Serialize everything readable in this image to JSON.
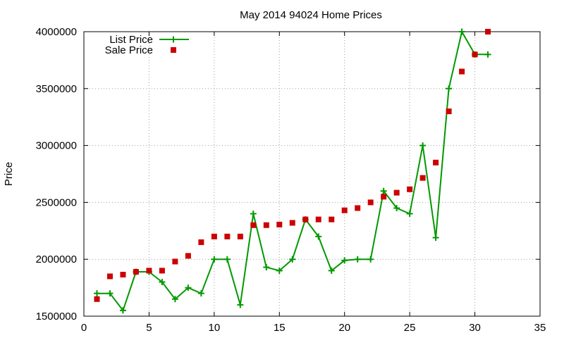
{
  "chart_data": {
    "type": "line",
    "title": "May 2014 94024 Home Prices",
    "xlabel": "",
    "ylabel": "Price",
    "xlim": [
      0,
      35
    ],
    "ylim": [
      1500000,
      4000000
    ],
    "xticks": [
      0,
      5,
      10,
      15,
      20,
      25,
      30,
      35
    ],
    "yticks": [
      1500000,
      2000000,
      2500000,
      3000000,
      3500000,
      4000000
    ],
    "grid": true,
    "legend_position": "top-left",
    "series": [
      {
        "name": "List Price",
        "style": "line-with-plus-markers",
        "color": "#009900",
        "x": [
          1,
          2,
          3,
          4,
          5,
          6,
          7,
          8,
          9,
          10,
          11,
          12,
          13,
          14,
          15,
          16,
          17,
          18,
          19,
          20,
          21,
          22,
          23,
          24,
          25,
          26,
          27,
          28,
          29,
          30,
          31
        ],
        "y": [
          1700000,
          1700000,
          1550000,
          1890000,
          1890000,
          1800000,
          1650000,
          1750000,
          1700000,
          2000000,
          2000000,
          1600000,
          2400000,
          1930000,
          1900000,
          2000000,
          2350000,
          2200000,
          1900000,
          1990000,
          2000000,
          2000000,
          2600000,
          2450000,
          2400000,
          3000000,
          2190000,
          3500000,
          4000000,
          3800000,
          3800000
        ]
      },
      {
        "name": "Sale Price",
        "style": "square-markers",
        "color": "#cc0000",
        "x": [
          1,
          2,
          3,
          4,
          5,
          6,
          7,
          8,
          9,
          10,
          11,
          12,
          13,
          14,
          15,
          16,
          17,
          18,
          19,
          20,
          21,
          22,
          23,
          24,
          25,
          26,
          27,
          28,
          29,
          30,
          31
        ],
        "y": [
          1650000,
          1850000,
          1865000,
          1890000,
          1900000,
          1900000,
          1980000,
          2030000,
          2150000,
          2200000,
          2200000,
          2200000,
          2300000,
          2300000,
          2305000,
          2320000,
          2350000,
          2350000,
          2350000,
          2430000,
          2450000,
          2500000,
          2550000,
          2585000,
          2615000,
          2715000,
          2850000,
          3300000,
          3650000,
          3800000,
          4000000
        ]
      }
    ]
  }
}
